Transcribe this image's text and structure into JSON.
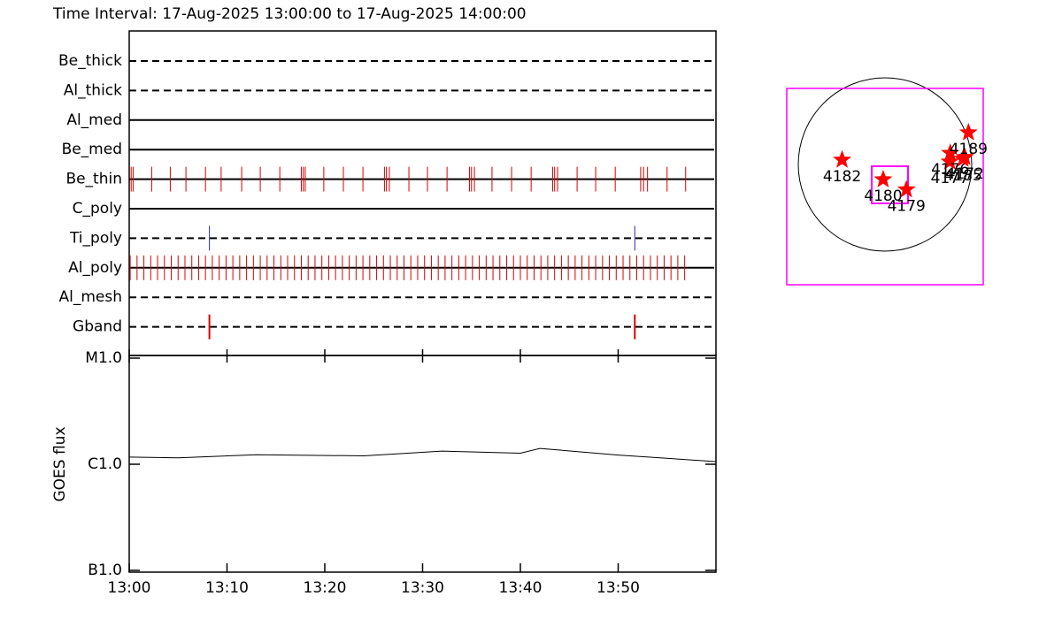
{
  "chart_data": [
    {
      "type": "timeline",
      "title": "Time Interval: 17-Aug-2025 13:00:00 to 17-Aug-2025 14:00:00",
      "xlim": [
        0,
        60
      ],
      "rows": [
        {
          "name": "Be_thick",
          "line": "dashed",
          "events": []
        },
        {
          "name": "Al_thick",
          "line": "dashed",
          "events": []
        },
        {
          "name": "Al_med",
          "line": "solid",
          "events": []
        },
        {
          "name": "Be_med",
          "line": "solid",
          "events": []
        },
        {
          "name": "Be_thin",
          "line": "solid",
          "color": "#dd0000",
          "events": [
            0.2,
            0.4,
            2.3,
            4.2,
            5.8,
            7.8,
            9.4,
            11.5,
            13.4,
            15.4,
            17.6,
            17.8,
            18.0,
            19.9,
            21.9,
            23.9,
            26.1,
            26.3,
            26.6,
            28.6,
            30.5,
            32.5,
            34.8,
            35.0,
            35.3,
            37.1,
            39.1,
            41.1,
            43.3,
            43.5,
            43.8,
            45.8,
            47.7,
            49.7,
            52.3,
            52.6,
            53.0,
            55.0,
            56.9
          ]
        },
        {
          "name": "C_poly",
          "line": "solid",
          "events": []
        },
        {
          "name": "Ti_poly",
          "line": "dashed",
          "color": "#2a2aa0",
          "events": [
            8.2,
            51.7
          ]
        },
        {
          "name": "Al_poly",
          "line": "solid",
          "color": "#dd0000",
          "events": [
            0.1,
            0.8,
            1.5,
            2.2,
            2.9,
            3.6,
            4.3,
            5.0,
            5.7,
            6.4,
            7.1,
            7.8,
            8.5,
            9.2,
            9.9,
            10.6,
            11.3,
            12.0,
            12.7,
            13.4,
            14.1,
            14.8,
            15.5,
            16.2,
            16.9,
            17.6,
            18.3,
            19.0,
            19.7,
            20.4,
            21.1,
            21.8,
            22.5,
            23.2,
            23.9,
            24.6,
            25.3,
            26.0,
            26.7,
            27.4,
            28.1,
            28.8,
            29.5,
            30.2,
            30.9,
            31.6,
            32.3,
            33.0,
            33.7,
            34.4,
            35.1,
            35.8,
            36.5,
            37.2,
            37.9,
            38.6,
            39.3,
            40.0,
            40.7,
            41.4,
            42.1,
            42.8,
            43.5,
            44.2,
            44.9,
            45.6,
            46.3,
            47.0,
            47.7,
            48.4,
            49.1,
            49.8,
            50.5,
            51.2,
            51.9,
            52.6,
            53.3,
            54.0,
            54.7,
            55.4,
            56.1,
            56.8
          ]
        },
        {
          "name": "Al_mesh",
          "line": "dashed",
          "events": []
        },
        {
          "name": "Gband",
          "line": "dashed",
          "color": "#dd0000",
          "events": [
            8.2,
            51.7
          ]
        }
      ]
    },
    {
      "type": "line",
      "ylabel": "GOES flux",
      "log_y": true,
      "color": "#000000",
      "x": [
        0,
        5,
        13,
        24,
        32,
        40,
        42,
        50,
        60
      ],
      "values": [
        1.17e-06,
        1.15e-06,
        1.23e-06,
        1.2e-06,
        1.33e-06,
        1.27e-06,
        1.41e-06,
        1.22e-06,
        1.06e-06
      ],
      "xlim": [
        0,
        60
      ],
      "xticks": [
        {
          "value": 0,
          "label": "13:00"
        },
        {
          "value": 10,
          "label": "13:10"
        },
        {
          "value": 20,
          "label": "13:20"
        },
        {
          "value": 30,
          "label": "13:30"
        },
        {
          "value": 40,
          "label": "13:40"
        },
        {
          "value": 50,
          "label": "13:50"
        }
      ],
      "ylim": [
        1e-07,
        1e-05
      ],
      "yticks": [
        {
          "value": 1e-05,
          "label": "M1.0"
        },
        {
          "value": 1e-06,
          "label": "C1.0"
        },
        {
          "value": 1e-07,
          "label": "B1.0"
        }
      ]
    },
    {
      "type": "map",
      "color": "#ff0000",
      "regions": [
        {
          "label": "4182",
          "x": -470,
          "y": 50
        },
        {
          "label": "4180",
          "x": -20,
          "y": -165
        },
        {
          "label": "4179",
          "x": 235,
          "y": -275
        },
        {
          "label": "4177",
          "x": 710,
          "y": 30
        },
        {
          "label": "4176",
          "x": 715,
          "y": 125
        },
        {
          "label": "4185",
          "x": 855,
          "y": 60
        },
        {
          "label": "4172",
          "x": 875,
          "y": 80
        },
        {
          "label": "4189",
          "x": 915,
          "y": 350
        }
      ]
    }
  ]
}
